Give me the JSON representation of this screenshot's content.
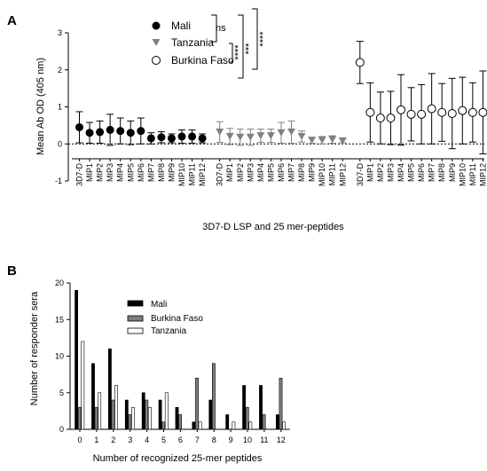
{
  "panels": {
    "A": "A",
    "B": "B"
  },
  "chart_data": [
    {
      "type": "scatter",
      "panel": "A",
      "ylabel": "Mean Ab OD (405 nm)",
      "xlabel": "3D7-D LSP and 25 mer-peptides",
      "ylim": [
        -1,
        3
      ],
      "yticks": [
        "-1",
        "0",
        "1",
        "2",
        "3"
      ],
      "reference_line": 0,
      "categories": [
        "3D7-D",
        "MIP1",
        "MIP2",
        "MIP3",
        "MIP4",
        "MIP5",
        "MIP6",
        "MIP7",
        "MIP8",
        "MIP9",
        "MIP10",
        "MIP11",
        "MIP12"
      ],
      "series": [
        {
          "name": "Mali",
          "marker": "filled-circle",
          "color": "#000000",
          "values": [
            0.45,
            0.3,
            0.32,
            0.38,
            0.35,
            0.3,
            0.35,
            0.15,
            0.18,
            0.15,
            0.2,
            0.2,
            0.15
          ],
          "errors": [
            0.42,
            0.28,
            0.3,
            0.42,
            0.35,
            0.32,
            0.35,
            0.15,
            0.15,
            0.12,
            0.18,
            0.18,
            0.12
          ]
        },
        {
          "name": "Tanzania",
          "marker": "triangle-down",
          "color": "#808080",
          "values": [
            0.32,
            0.2,
            0.18,
            0.18,
            0.22,
            0.22,
            0.3,
            0.32,
            0.2,
            0.1,
            0.1,
            0.12,
            0.08
          ],
          "errors": [
            0.28,
            0.22,
            0.22,
            0.22,
            0.18,
            0.18,
            0.28,
            0.3,
            0.15,
            0.08,
            0.1,
            0.1,
            0.05
          ]
        },
        {
          "name": "Burkina Faso",
          "marker": "open-circle",
          "color": "#000000",
          "values": [
            2.2,
            0.85,
            0.7,
            0.7,
            0.92,
            0.8,
            0.8,
            0.95,
            0.85,
            0.82,
            0.9,
            0.85,
            0.85
          ],
          "errors": [
            0.57,
            0.8,
            0.7,
            0.72,
            0.95,
            0.72,
            0.8,
            0.95,
            0.78,
            0.95,
            0.9,
            0.8,
            1.12
          ]
        }
      ],
      "significance": [
        "ns",
        "****",
        "***",
        "****"
      ]
    },
    {
      "type": "bar",
      "panel": "B",
      "ylabel": "Number of responder sera",
      "xlabel": "Number of recognized 25-mer peptides",
      "ylim": [
        0,
        20
      ],
      "yticks": [
        "0",
        "5",
        "10",
        "15",
        "20"
      ],
      "categories": [
        "0",
        "1",
        "2",
        "3",
        "4",
        "5",
        "6",
        "7",
        "8",
        "9",
        "10",
        "11",
        "12"
      ],
      "series": [
        {
          "name": "Mali",
          "color": "#000000",
          "values": [
            19,
            9,
            11,
            4,
            5,
            4,
            3,
            1,
            4,
            2,
            6,
            6,
            2
          ]
        },
        {
          "name": "Burkina Faso",
          "color": "#7f7f7f",
          "values": [
            3,
            3,
            4,
            2,
            4,
            1,
            2,
            7,
            9,
            0,
            3,
            2,
            7
          ]
        },
        {
          "name": "Tanzania",
          "color": "#ffffff",
          "values": [
            12,
            5,
            6,
            3,
            3,
            5,
            0,
            1,
            0,
            1,
            1,
            0,
            1
          ]
        }
      ]
    }
  ]
}
